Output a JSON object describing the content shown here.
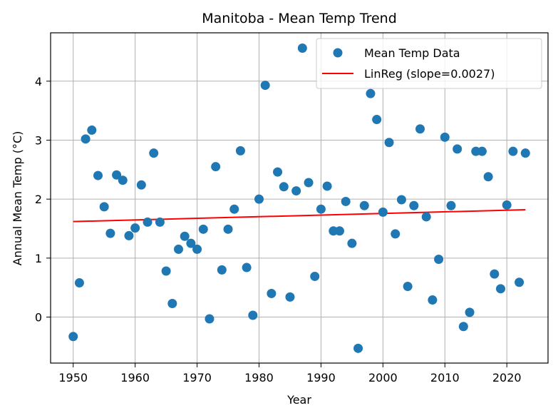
{
  "chart_data": {
    "type": "scatter",
    "title": "Manitoba - Mean Temp Trend",
    "xlabel": "Year",
    "ylabel": "Annual Mean Temp (°C)",
    "xlim": [
      1946.35,
      2026.65
    ],
    "ylim": [
      -0.78,
      4.82
    ],
    "xticks": [
      1950,
      1960,
      1970,
      1980,
      1990,
      2000,
      2010,
      2020
    ],
    "yticks": [
      0,
      1,
      2,
      3,
      4
    ],
    "grid": true,
    "legend_position": "top-right",
    "colors": {
      "points": "#1f77b4",
      "line": "#ff0000"
    },
    "series": [
      {
        "name": "Mean Temp Data",
        "kind": "scatter",
        "x": [
          1950,
          1951,
          1952,
          1953,
          1954,
          1955,
          1956,
          1957,
          1958,
          1959,
          1960,
          1961,
          1962,
          1963,
          1964,
          1965,
          1966,
          1967,
          1968,
          1969,
          1970,
          1971,
          1972,
          1973,
          1974,
          1975,
          1976,
          1977,
          1978,
          1979,
          1980,
          1981,
          1982,
          1983,
          1984,
          1985,
          1986,
          1987,
          1988,
          1989,
          1990,
          1991,
          1992,
          1993,
          1994,
          1995,
          1996,
          1997,
          1998,
          1999,
          2000,
          2001,
          2002,
          2003,
          2004,
          2005,
          2006,
          2007,
          2008,
          2009,
          2010,
          2011,
          2012,
          2013,
          2014,
          2015,
          2016,
          2017,
          2018,
          2019,
          2020,
          2021,
          2022,
          2023
        ],
        "y": [
          -0.33,
          0.58,
          3.02,
          3.17,
          2.4,
          1.87,
          1.42,
          2.41,
          2.32,
          1.38,
          1.51,
          2.24,
          1.61,
          2.78,
          1.61,
          0.78,
          0.23,
          1.15,
          1.37,
          1.25,
          1.15,
          1.49,
          -0.03,
          2.55,
          0.8,
          1.49,
          1.83,
          2.82,
          0.84,
          0.03,
          2.0,
          3.93,
          0.4,
          2.46,
          2.21,
          0.34,
          2.14,
          4.56,
          2.28,
          0.69,
          1.83,
          2.22,
          1.46,
          1.46,
          1.96,
          1.25,
          -0.53,
          1.89,
          3.79,
          3.35,
          1.78,
          2.96,
          1.41,
          1.99,
          0.52,
          1.89,
          3.19,
          1.7,
          0.29,
          0.98,
          3.05,
          1.89,
          2.85,
          -0.16,
          0.08,
          2.81,
          2.81,
          2.38,
          0.73,
          0.48,
          1.9,
          2.81,
          0.59,
          2.78
        ]
      },
      {
        "name": "LinReg (slope=0.0027)",
        "kind": "line",
        "x": [
          1950,
          2023
        ],
        "y": [
          1.62,
          1.82
        ]
      }
    ]
  }
}
